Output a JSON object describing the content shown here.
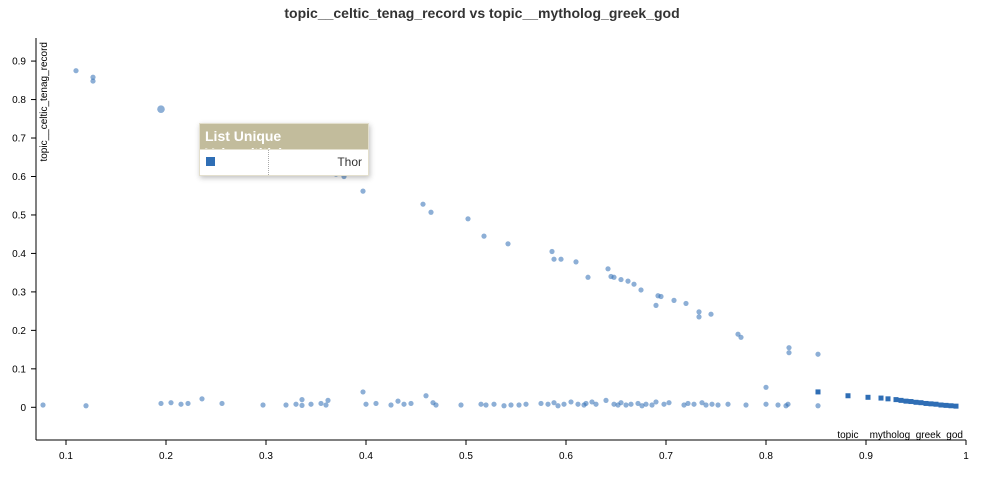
{
  "chart_data": {
    "type": "scatter",
    "title": "topic__celtic_tenag_record vs topic__mytholog_greek_god",
    "xlabel": "topic__mytholog_greek_god",
    "ylabel": "topic__celtic_tenag_record",
    "xlim": [
      0.07,
      1.0
    ],
    "ylim": [
      -0.085,
      0.96
    ],
    "xticks": [
      "0.1",
      "0.2",
      "0.3",
      "0.4",
      "0.5",
      "0.6",
      "0.7",
      "0.8",
      "0.9",
      "1"
    ],
    "yticks": [
      "0",
      "0.1",
      "0.2",
      "0.3",
      "0.4",
      "0.5",
      "0.6",
      "0.7",
      "0.8",
      "0.9"
    ],
    "grid": false,
    "point_color": "#2f6eb5",
    "highlight_color": "#2f6eb5",
    "points": [
      [
        0.11,
        0.875
      ],
      [
        0.127,
        0.858
      ],
      [
        0.127,
        0.848
      ],
      [
        0.195,
        0.775
      ],
      [
        0.35,
        0.612
      ],
      [
        0.363,
        0.612
      ],
      [
        0.37,
        0.606
      ],
      [
        0.378,
        0.6
      ],
      [
        0.397,
        0.562
      ],
      [
        0.457,
        0.528
      ],
      [
        0.465,
        0.507
      ],
      [
        0.502,
        0.49
      ],
      [
        0.518,
        0.445
      ],
      [
        0.542,
        0.425
      ],
      [
        0.586,
        0.405
      ],
      [
        0.588,
        0.385
      ],
      [
        0.595,
        0.385
      ],
      [
        0.61,
        0.378
      ],
      [
        0.622,
        0.338
      ],
      [
        0.642,
        0.36
      ],
      [
        0.645,
        0.34
      ],
      [
        0.648,
        0.338
      ],
      [
        0.655,
        0.332
      ],
      [
        0.662,
        0.328
      ],
      [
        0.668,
        0.32
      ],
      [
        0.675,
        0.305
      ],
      [
        0.69,
        0.265
      ],
      [
        0.692,
        0.29
      ],
      [
        0.695,
        0.288
      ],
      [
        0.708,
        0.278
      ],
      [
        0.72,
        0.27
      ],
      [
        0.733,
        0.248
      ],
      [
        0.733,
        0.235
      ],
      [
        0.745,
        0.242
      ],
      [
        0.772,
        0.19
      ],
      [
        0.775,
        0.182
      ],
      [
        0.823,
        0.155
      ],
      [
        0.823,
        0.142
      ],
      [
        0.852,
        0.138
      ],
      [
        0.8,
        0.052
      ],
      [
        0.077,
        0.006
      ],
      [
        0.12,
        0.004
      ],
      [
        0.195,
        0.01
      ],
      [
        0.205,
        0.012
      ],
      [
        0.215,
        0.008
      ],
      [
        0.222,
        0.01
      ],
      [
        0.236,
        0.022
      ],
      [
        0.256,
        0.01
      ],
      [
        0.297,
        0.006
      ],
      [
        0.32,
        0.006
      ],
      [
        0.33,
        0.008
      ],
      [
        0.336,
        0.02
      ],
      [
        0.336,
        0.005
      ],
      [
        0.345,
        0.008
      ],
      [
        0.355,
        0.01
      ],
      [
        0.36,
        0.006
      ],
      [
        0.362,
        0.018
      ],
      [
        0.397,
        0.04
      ],
      [
        0.4,
        0.008
      ],
      [
        0.41,
        0.01
      ],
      [
        0.425,
        0.006
      ],
      [
        0.432,
        0.016
      ],
      [
        0.438,
        0.008
      ],
      [
        0.445,
        0.01
      ],
      [
        0.46,
        0.03
      ],
      [
        0.467,
        0.012
      ],
      [
        0.47,
        0.006
      ],
      [
        0.495,
        0.006
      ],
      [
        0.515,
        0.008
      ],
      [
        0.52,
        0.006
      ],
      [
        0.528,
        0.008
      ],
      [
        0.538,
        0.004
      ],
      [
        0.545,
        0.006
      ],
      [
        0.553,
        0.006
      ],
      [
        0.56,
        0.008
      ],
      [
        0.575,
        0.01
      ],
      [
        0.582,
        0.008
      ],
      [
        0.588,
        0.012
      ],
      [
        0.592,
        0.004
      ],
      [
        0.598,
        0.008
      ],
      [
        0.605,
        0.014
      ],
      [
        0.612,
        0.008
      ],
      [
        0.618,
        0.006
      ],
      [
        0.62,
        0.01
      ],
      [
        0.626,
        0.014
      ],
      [
        0.63,
        0.008
      ],
      [
        0.64,
        0.018
      ],
      [
        0.648,
        0.008
      ],
      [
        0.652,
        0.006
      ],
      [
        0.655,
        0.012
      ],
      [
        0.66,
        0.006
      ],
      [
        0.665,
        0.008
      ],
      [
        0.672,
        0.01
      ],
      [
        0.676,
        0.004
      ],
      [
        0.68,
        0.008
      ],
      [
        0.686,
        0.006
      ],
      [
        0.69,
        0.014
      ],
      [
        0.698,
        0.008
      ],
      [
        0.703,
        0.012
      ],
      [
        0.718,
        0.006
      ],
      [
        0.722,
        0.01
      ],
      [
        0.728,
        0.008
      ],
      [
        0.736,
        0.012
      ],
      [
        0.74,
        0.006
      ],
      [
        0.746,
        0.008
      ],
      [
        0.752,
        0.006
      ],
      [
        0.762,
        0.008
      ],
      [
        0.78,
        0.006
      ],
      [
        0.8,
        0.008
      ],
      [
        0.812,
        0.006
      ],
      [
        0.82,
        0.004
      ],
      [
        0.822,
        0.008
      ],
      [
        0.852,
        0.004
      ]
    ],
    "highlighted_points": [
      [
        0.852,
        0.04
      ],
      [
        0.882,
        0.03
      ],
      [
        0.902,
        0.026
      ],
      [
        0.915,
        0.024
      ],
      [
        0.922,
        0.022
      ],
      [
        0.93,
        0.02
      ],
      [
        0.935,
        0.018
      ],
      [
        0.94,
        0.016
      ],
      [
        0.945,
        0.015
      ],
      [
        0.95,
        0.013
      ],
      [
        0.955,
        0.012
      ],
      [
        0.96,
        0.01
      ],
      [
        0.965,
        0.009
      ],
      [
        0.97,
        0.008
      ],
      [
        0.975,
        0.006
      ],
      [
        0.98,
        0.005
      ],
      [
        0.985,
        0.004
      ],
      [
        0.99,
        0.003
      ]
    ]
  },
  "tooltip": {
    "header": "List Unique Values(title)",
    "value": "Thor"
  }
}
